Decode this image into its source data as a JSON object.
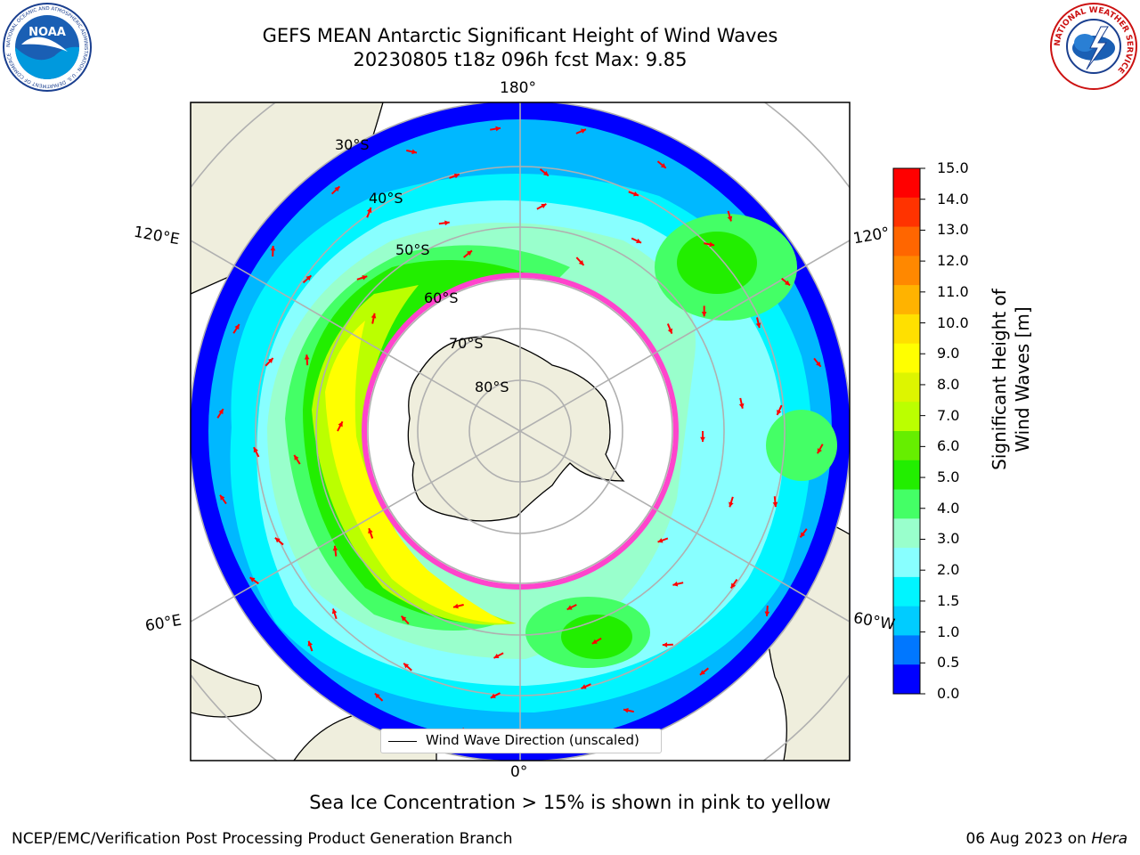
{
  "header": {
    "title_line1": "GEFS MEAN Antarctic Significant Height of Wind Waves",
    "title_line2": "20230805 t18z 096h fcst   Max: 9.85"
  },
  "logos": {
    "left": "NOAA",
    "left_ring_text": "NATIONAL OCEANIC AND ATMOSPHERIC ADMINISTRATION · U.S. DEPARTMENT OF COMMERCE",
    "right_ring_text": "NATIONAL WEATHER SERVICE"
  },
  "map": {
    "lon_labels": {
      "top": "180°",
      "bottom": "0°",
      "upper_left": "120°E",
      "upper_right": "120°",
      "lower_left": "60°E",
      "lower_right": "60°W"
    },
    "lat_labels": [
      "30°S",
      "40°S",
      "50°S",
      "60°S",
      "70°S",
      "80°S"
    ],
    "legend_label": "Wind Wave Direction (unscaled)",
    "colors": {
      "land": "#efeedd",
      "ice": "#ffffff",
      "arrow": "#ff0000",
      "sea_ice_edge": "#ff44cc",
      "grid": "#b0b0b0"
    }
  },
  "colorbar": {
    "title": "Significant Height of Wind Waves [m]",
    "ticks": [
      "15.0",
      "14.0",
      "13.0",
      "12.0",
      "11.0",
      "10.0",
      "9.0",
      "8.0",
      "7.0",
      "6.0",
      "5.0",
      "4.0",
      "3.0",
      "2.0",
      "1.5",
      "1.0",
      "0.5",
      "0.0"
    ],
    "colors": [
      "#ff0000",
      "#ff3300",
      "#ff6600",
      "#ff8800",
      "#ffb300",
      "#ffe000",
      "#ffff00",
      "#ddf500",
      "#bbff00",
      "#66ee00",
      "#22ee00",
      "#44ff66",
      "#99ffcc",
      "#88ffff",
      "#00f5ff",
      "#00ccff",
      "#0077ff",
      "#0000ff"
    ]
  },
  "caption": "Sea Ice Concentration > 15% is shown in pink to yellow",
  "footer": {
    "left": "NCEP/EMC/Verification Post Processing Product Generation Branch",
    "date": "06 Aug 2023 on ",
    "system": "Hera"
  }
}
